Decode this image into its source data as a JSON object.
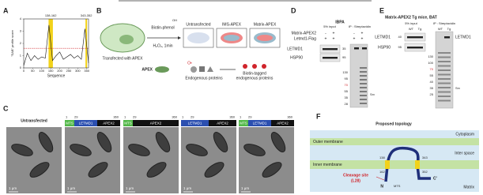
{
  "figure": {
    "A": {
      "label": "A",
      "chart": {
        "type": "line",
        "xlabel": "Sequence",
        "ylabel": "\"SAB\" profile score",
        "regions": [
          {
            "label": "138-162",
            "start": 138,
            "end": 162
          },
          {
            "label": "343-352",
            "start": 343,
            "end": 352
          }
        ],
        "x": [
          0,
          20,
          40,
          60,
          80,
          100,
          120,
          140,
          160,
          180,
          200,
          220,
          240,
          260,
          280,
          300,
          320,
          340,
          360
        ],
        "values": [
          0.2,
          1.2,
          0.6,
          1.0,
          0.7,
          0.9,
          0.8,
          3.5,
          0.6,
          1.0,
          1.3,
          0.7,
          0.9,
          1.1,
          0.8,
          1.0,
          0.7,
          3.2,
          0.4
        ],
        "threshold": 1.6,
        "xlim": [
          0,
          360
        ],
        "ylim": [
          0,
          4
        ],
        "xticks": [
          0,
          50,
          100,
          150,
          200,
          250,
          300,
          350
        ],
        "yticks": [
          0,
          1,
          2,
          3,
          4
        ]
      }
    },
    "B": {
      "label": "B",
      "cell_label": "Transfected with APEX",
      "reagent": "Biotin-phenol",
      "hydroxyl": "OH",
      "treatment": "H₂O₂, 1min",
      "conditions": [
        "Untransfected",
        "IMS-APEX",
        "Matrix-APEX"
      ],
      "enzyme": "APEX",
      "radical": "O•",
      "substrates": "Endogenous proteins",
      "product": [
        "Biotin-tagged",
        "endogenous proteins"
      ]
    },
    "C": {
      "label": "C",
      "control": "Untransfected",
      "constructs": [
        {
          "positions": [
            "1",
            "29",
            "360"
          ],
          "domains": [
            "MTS",
            "LETMD1",
            "APEX2"
          ]
        },
        {
          "positions": [
            "1",
            "29",
            "360"
          ],
          "domains": [
            "MTS",
            "APEX2"
          ]
        },
        {
          "positions": [
            "1",
            "29",
            "360"
          ],
          "domains": [
            "LETMD1",
            "APEX2"
          ]
        },
        {
          "positions": [
            "1",
            "29",
            "360"
          ],
          "domains": [
            "MTS",
            "LETMD1",
            "APEX2"
          ]
        }
      ],
      "scale_bar": "1 μm"
    },
    "D": {
      "label": "D",
      "cell": "IBPA",
      "rows": [
        {
          "name": "Matrix-APEX2",
          "signs": [
            "-",
            "+",
            "-",
            "+"
          ]
        },
        {
          "name": "Letmd1-Flag",
          "signs": [
            "+",
            "+",
            "+",
            "+"
          ]
        }
      ],
      "input": "5% input",
      "ip": "IP : Streptavidin",
      "blots": [
        "LETMD1",
        "HSP90"
      ],
      "blot_markers": [
        "35",
        "95"
      ],
      "ladder": [
        "130",
        "95",
        "70",
        "55",
        "35",
        "28"
      ],
      "stain": "Srv"
    },
    "E": {
      "label": "E",
      "title": "Matrix-APEX2 Tg mice, BAT",
      "input": "5% input",
      "ip": "IP : Streptavidin",
      "groups": [
        "WT",
        "Tg"
      ],
      "blots": [
        "LETMD1",
        "HSP90"
      ],
      "blot_markers": [
        "40",
        "95"
      ],
      "ladder": [
        "130",
        "100",
        "70",
        "55",
        "40",
        "35",
        "25"
      ],
      "stain": "Srv"
    },
    "F": {
      "label": "F",
      "title": "Proposed topology",
      "cytoplasm": "Cytoplasm",
      "outer": "Outer membrane",
      "inter": "Inter space",
      "inner": "Inner membrane",
      "matrix": "Matrix",
      "residues": [
        "138",
        "162",
        "343",
        "352"
      ],
      "cleavage": [
        "Cleavage site",
        "(L28)"
      ],
      "n_term": "N",
      "c_term": "C'",
      "mts": "MTS"
    }
  }
}
